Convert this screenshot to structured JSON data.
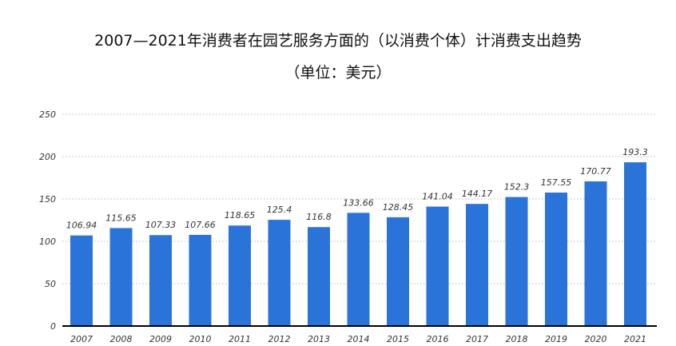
{
  "chart_data": {
    "type": "bar",
    "title": "2007—2021年消费者在园艺服务方面的（以消费个体）计消费支出趋势",
    "subtitle": "（单位：美元）",
    "xlabel": "",
    "ylabel": "",
    "categories": [
      "2007",
      "2008",
      "2009",
      "2010",
      "2011",
      "2012",
      "2013",
      "2014",
      "2015",
      "2016",
      "2017",
      "2018",
      "2019",
      "2020",
      "2021"
    ],
    "values": [
      106.94,
      115.65,
      107.33,
      107.66,
      118.65,
      125.4,
      116.8,
      133.66,
      128.45,
      141.04,
      144.17,
      152.3,
      157.55,
      170.77,
      193.3
    ],
    "value_labels": [
      "106.94",
      "115.65",
      "107.33",
      "107.66",
      "118.65",
      "125.4",
      "116.8",
      "133.66",
      "128.45",
      "141.04",
      "144.17",
      "152.3",
      "157.55",
      "170.77",
      "193.3"
    ],
    "ylim": [
      0,
      250
    ],
    "yticks": [
      "0",
      "50",
      "100",
      "150",
      "200",
      "250"
    ],
    "grid": true,
    "bar_color": "#2a74d9"
  }
}
